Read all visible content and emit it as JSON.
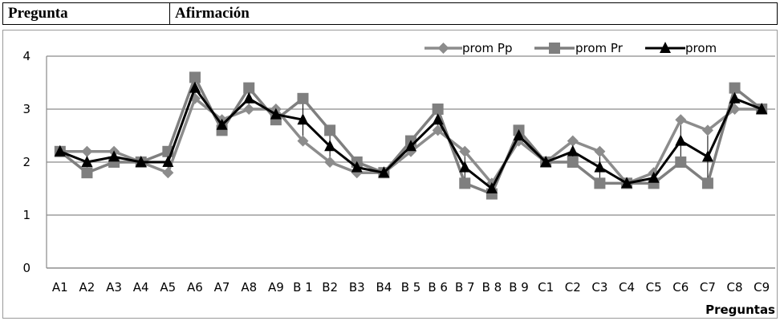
{
  "header": {
    "col1": "Pregunta",
    "col2": "Afirmación"
  },
  "chart_data": {
    "type": "line",
    "title": "",
    "xlabel": "Preguntas",
    "ylabel": "",
    "ylim": [
      0,
      4
    ],
    "yticks": [
      0,
      1,
      2,
      3,
      4
    ],
    "grid": true,
    "legend_position": "top-right",
    "categories": [
      "A1",
      "A2",
      "A3",
      "A4",
      "A5",
      "A6",
      "A7",
      "A8",
      "A9",
      "B 1",
      "B2",
      "B3",
      "B4",
      "B 5",
      "B 6",
      "B 7",
      "B 8",
      "B 9",
      "C1",
      "C2",
      "C3",
      "C4",
      "C5",
      "C6",
      "C7",
      "C8",
      "C9"
    ],
    "series": [
      {
        "name": "prom Pp",
        "color": "#8c8c8c",
        "marker": "diamond",
        "values": [
          2.2,
          2.2,
          2.2,
          2.0,
          1.8,
          3.2,
          2.8,
          3.0,
          3.0,
          2.4,
          2.0,
          1.8,
          1.8,
          2.2,
          2.6,
          2.2,
          1.6,
          2.4,
          2.0,
          2.4,
          2.2,
          1.6,
          1.8,
          2.8,
          2.6,
          3.0,
          3.0
        ]
      },
      {
        "name": "prom Pr",
        "color": "#7f7f7f",
        "marker": "square",
        "values": [
          2.2,
          1.8,
          2.0,
          2.0,
          2.2,
          3.6,
          2.6,
          3.4,
          2.8,
          3.2,
          2.6,
          2.0,
          1.8,
          2.4,
          3.0,
          1.6,
          1.4,
          2.6,
          2.0,
          2.0,
          1.6,
          1.6,
          1.6,
          2.0,
          1.6,
          3.4,
          3.0
        ]
      },
      {
        "name": "prom",
        "color": "#000000",
        "marker": "triangle",
        "values": [
          2.2,
          2.0,
          2.1,
          2.0,
          2.0,
          3.4,
          2.7,
          3.2,
          2.9,
          2.8,
          2.3,
          1.9,
          1.8,
          2.3,
          2.8,
          1.9,
          1.5,
          2.5,
          2.0,
          2.2,
          1.9,
          1.6,
          1.7,
          2.4,
          2.1,
          3.2,
          3.0
        ]
      }
    ]
  }
}
